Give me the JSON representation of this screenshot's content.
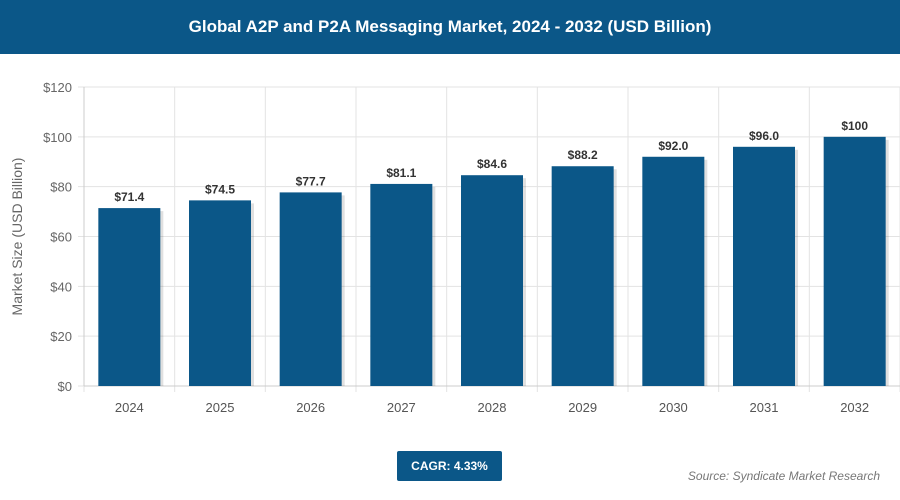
{
  "chart_data": {
    "type": "bar",
    "title": "Global A2P and P2A Messaging Market, 2024 - 2032 (USD Billion)",
    "ylabel": "Market Size (USD Billion)",
    "xlabel": "",
    "categories": [
      "2024",
      "2025",
      "2026",
      "2027",
      "2028",
      "2029",
      "2030",
      "2031",
      "2032"
    ],
    "values": [
      71.4,
      74.5,
      77.7,
      81.1,
      84.6,
      88.2,
      92.0,
      96.0,
      100
    ],
    "data_labels": [
      "$71.4",
      "$74.5",
      "$77.7",
      "$81.1",
      "$84.6",
      "$88.2",
      "$92.0",
      "$96.0",
      "$100"
    ],
    "ylim": [
      0,
      120
    ],
    "yticks": [
      0,
      20,
      40,
      60,
      80,
      100,
      120
    ],
    "ytick_labels": [
      "$0",
      "$20",
      "$40",
      "$60",
      "$80",
      "$100",
      "$120"
    ],
    "grid": true,
    "bar_color": "#0b5788"
  },
  "cagr": "CAGR: 4.33%",
  "source": "Source: Syndicate Market Research"
}
